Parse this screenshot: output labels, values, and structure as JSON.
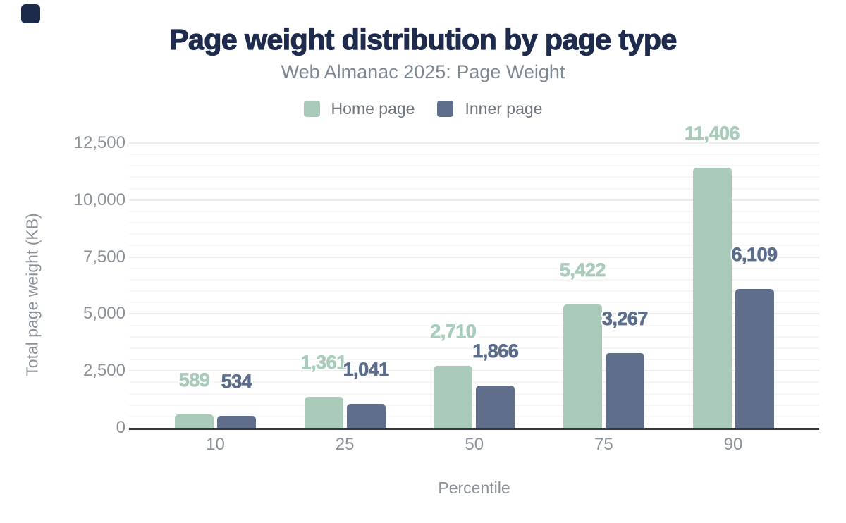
{
  "logo": {
    "color": "#1c2b4a"
  },
  "chart_data": {
    "type": "bar",
    "title": "Page weight distribution by page type",
    "subtitle": "Web Almanac 2025: Page Weight",
    "xlabel": "Percentile",
    "ylabel": "Total page weight (KB)",
    "categories": [
      "10",
      "25",
      "50",
      "75",
      "90"
    ],
    "series": [
      {
        "name": "Home page",
        "color": "#a9cab8",
        "label_color": "#a9ccba",
        "values": [
          589,
          1361,
          2710,
          5422,
          11406
        ]
      },
      {
        "name": "Inner page",
        "color": "#5e6e8b",
        "label_color": "#5c6d8c",
        "values": [
          534,
          1041,
          1866,
          3267,
          6109
        ]
      }
    ],
    "ylim": [
      0,
      12500
    ],
    "yticks": [
      0,
      2500,
      5000,
      7500,
      10000,
      12500
    ],
    "minor_grid_step": 500,
    "grid": true,
    "legend_position": "top",
    "value_labels": true
  },
  "colors": {
    "title": "#1e2b4d",
    "subtitle": "#7e8894",
    "axis_text": "#8b9198",
    "legend_text": "#6e757d",
    "axis_line": "#32373c",
    "grid_minor": "#f6f6f6",
    "grid_major": "#ececec",
    "background": "#ffffff"
  }
}
